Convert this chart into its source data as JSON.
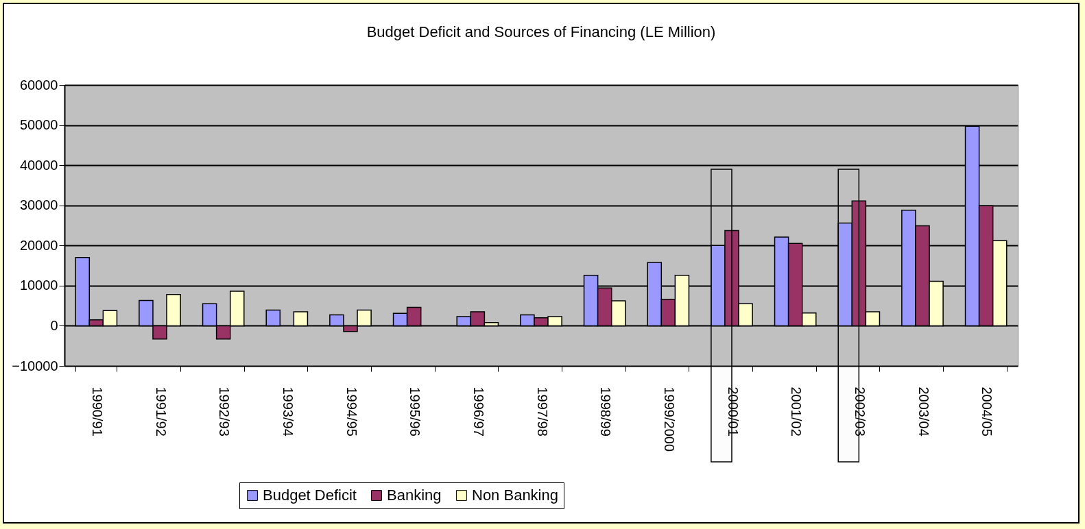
{
  "chart_data": {
    "type": "bar",
    "title": "Budget Deficit and Sources of Financing (LE Million)",
    "categories": [
      "1990/91",
      "1991/92",
      "1992/93",
      "1993/94",
      "1994/95",
      "1995/96",
      "1996/97",
      "1997/98",
      "1998/99",
      "1999/2000",
      "2000/01",
      "2001/02",
      "2002/03",
      "2003/04",
      "2004/05"
    ],
    "series": [
      {
        "name": "Budget Deficit",
        "color": "#9999ff",
        "values": [
          17000,
          6300,
          5500,
          3900,
          2700,
          3100,
          2300,
          2700,
          12600,
          15800,
          20000,
          22100,
          25600,
          28800,
          49700
        ]
      },
      {
        "name": "Banking",
        "color": "#993366",
        "values": [
          1500,
          -3300,
          -3300,
          null,
          -1400,
          4600,
          3500,
          2000,
          9400,
          6600,
          23700,
          20500,
          31100,
          24900,
          29900
        ]
      },
      {
        "name": "Non Banking",
        "color": "#ffffcc",
        "values": [
          3800,
          7800,
          8600,
          3500,
          3900,
          null,
          800,
          2300,
          6200,
          12600,
          5500,
          3200,
          3500,
          11100,
          21200
        ]
      }
    ],
    "ylim": [
      -10000,
      60000
    ],
    "yticks": [
      -10000,
      0,
      10000,
      20000,
      30000,
      40000,
      50000,
      60000
    ],
    "grid": "y",
    "legend": "bottom",
    "bands": [
      {
        "axis": "x",
        "from": "2000/01",
        "to": "2000/01"
      },
      {
        "axis": "x",
        "from": "2002/03",
        "to": "2002/03"
      }
    ]
  }
}
